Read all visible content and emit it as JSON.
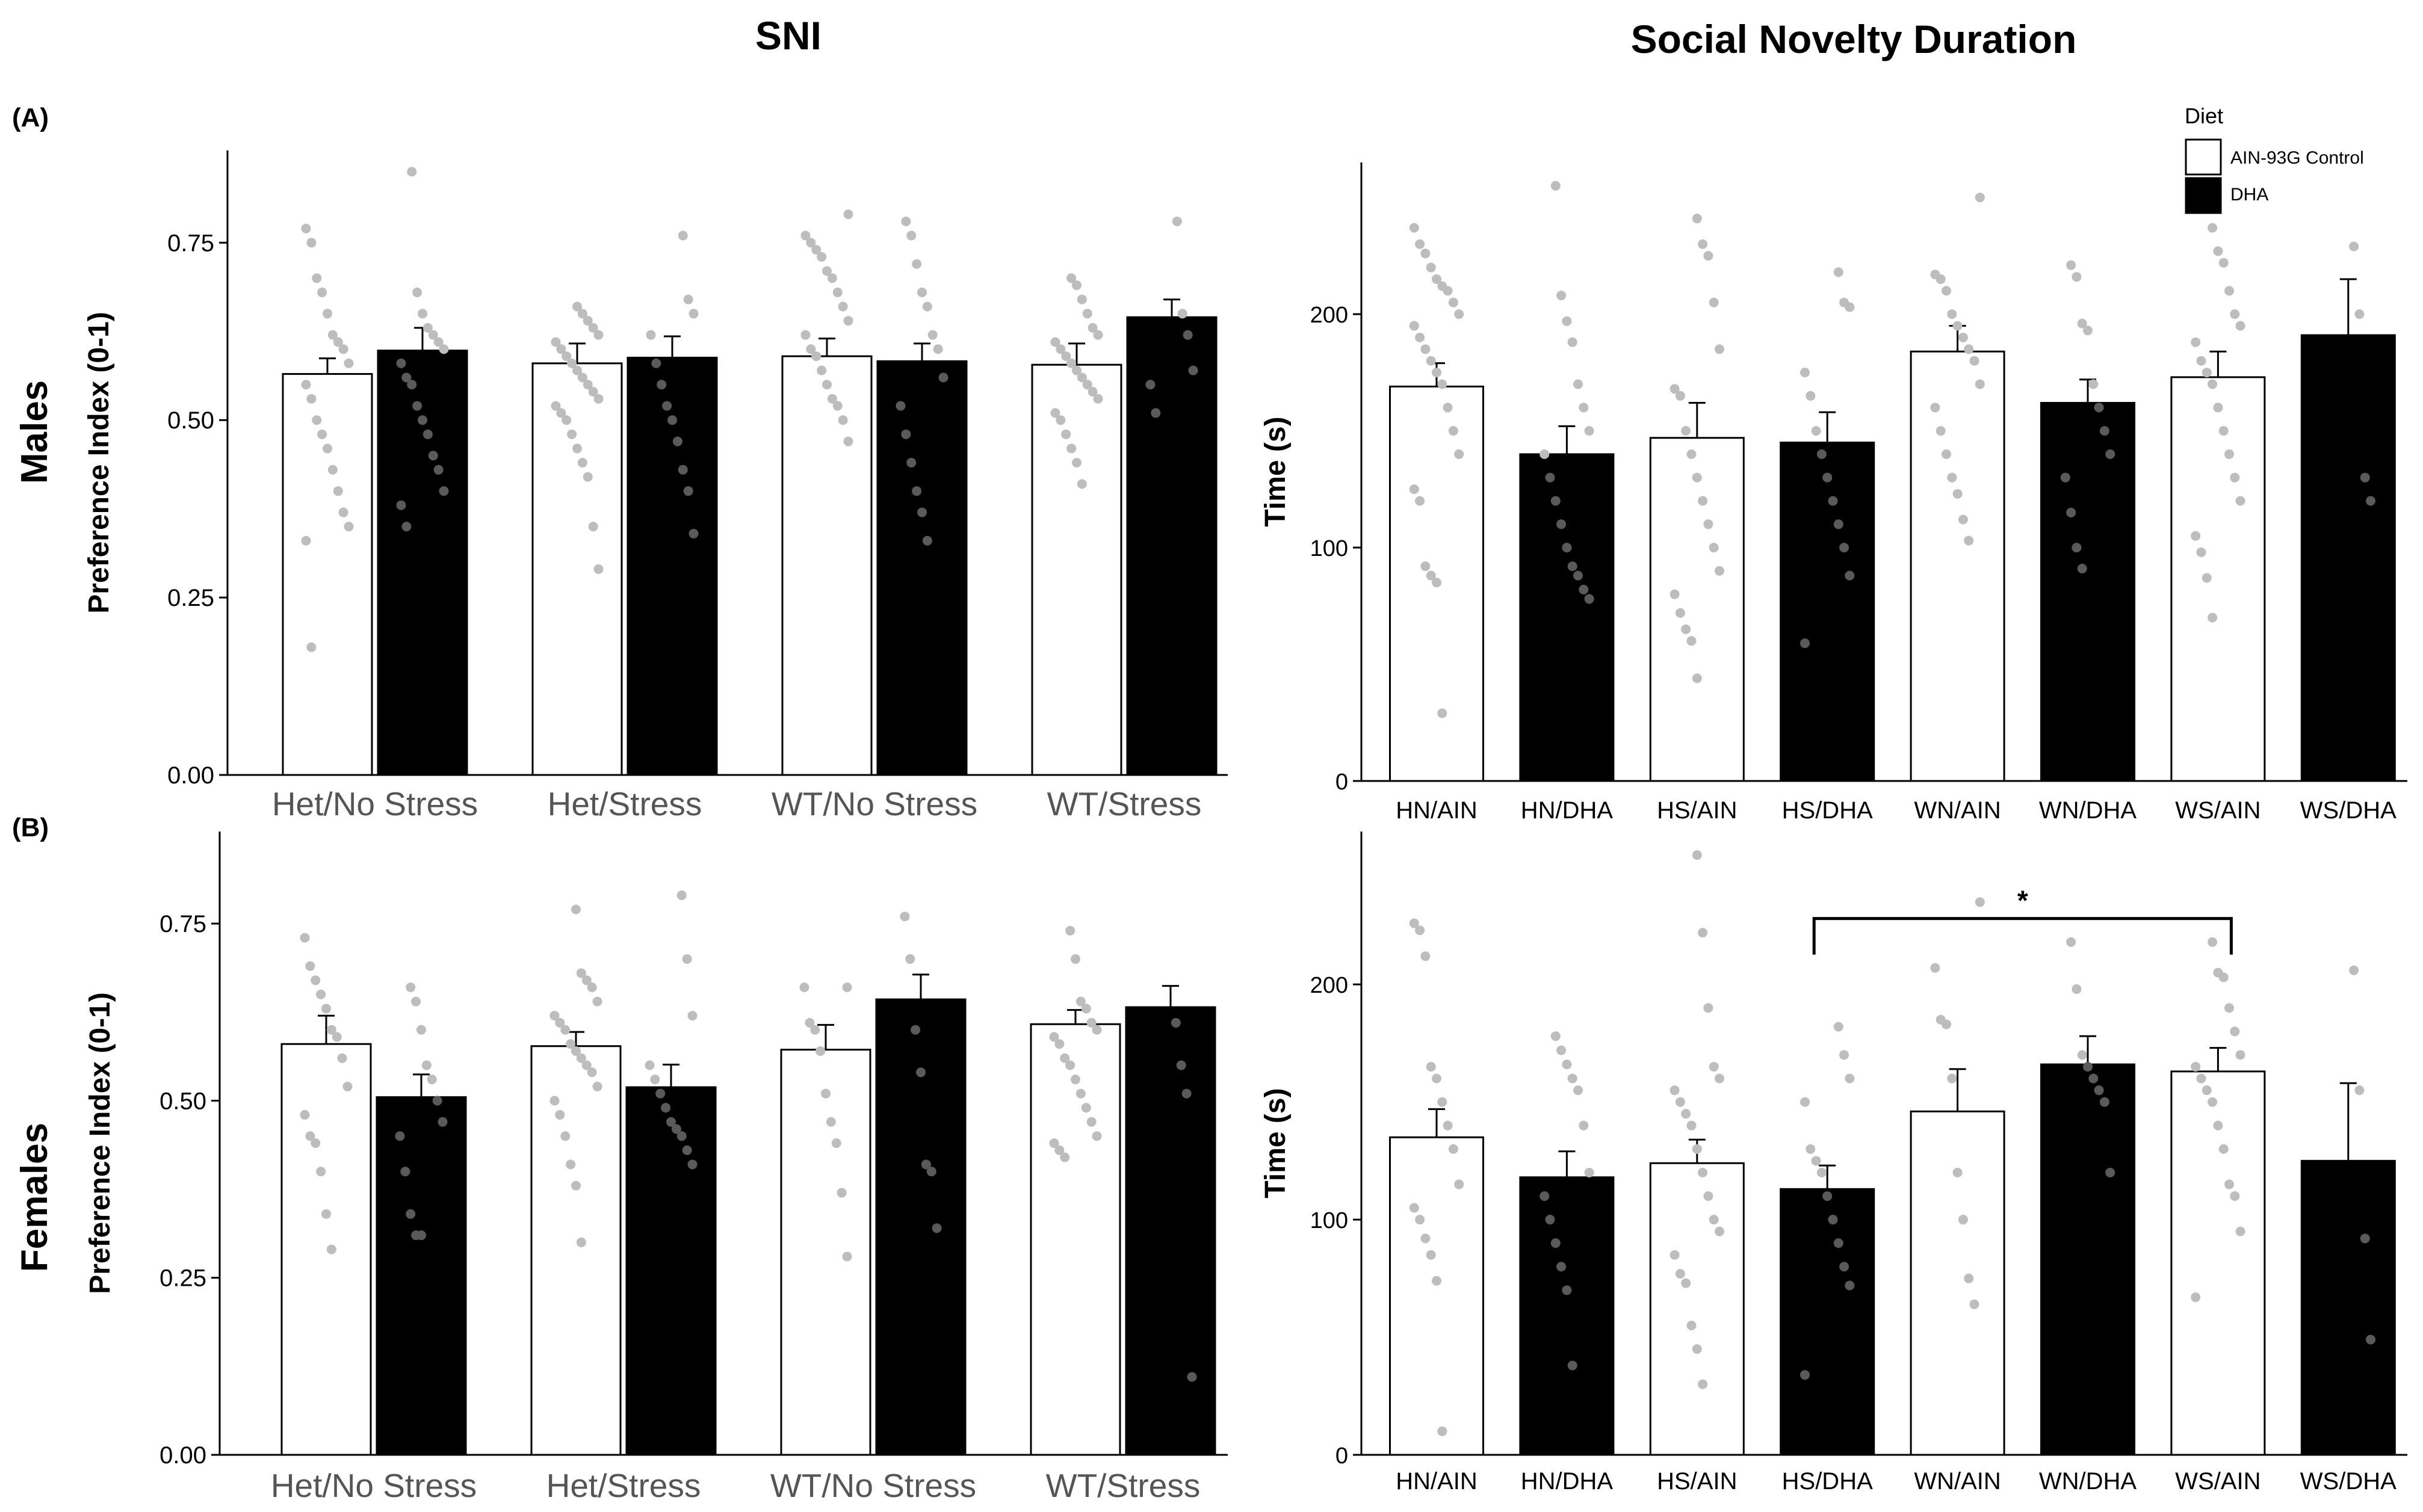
{
  "headers": {
    "left": "SNI",
    "right": "Social Novelty Duration",
    "row_a": "Males",
    "row_b": "Females",
    "panel_a": "(A)",
    "panel_b": "(B)"
  },
  "colors": {
    "ain": "#ffffff",
    "dha": "#000000",
    "dots": "#bdbdbd",
    "dots_on_black": "#5a5a5a",
    "axis": "#000000"
  },
  "legend": {
    "title": "Diet",
    "items": [
      {
        "label": "AIN-93G Control",
        "color": "#ffffff"
      },
      {
        "label": "DHA",
        "color": "#000000"
      }
    ]
  },
  "chart_data": [
    {
      "id": "males-sni",
      "type": "bar",
      "title": "SNI",
      "xlabel": "",
      "ylabel": "Preference Index (0-1)",
      "ylim": [
        0,
        0.88
      ],
      "yticks": [
        0,
        0.25,
        0.5,
        0.75
      ],
      "ytick_labels": [
        "0.00",
        "0.25",
        "0.50",
        "0.75"
      ],
      "categories": [
        "Het/No Stress",
        "Het/Stress",
        "WT/No Stress",
        "WT/Stress"
      ],
      "series": [
        {
          "name": "AIN-93G Control",
          "values": [
            0.565,
            0.58,
            0.59,
            0.578
          ],
          "errors": [
            0.022,
            0.028,
            0.025,
            0.03
          ]
        },
        {
          "name": "DHA",
          "values": [
            0.598,
            0.588,
            0.583,
            0.645
          ],
          "errors": [
            0.032,
            0.03,
            0.025,
            0.025
          ]
        }
      ],
      "points": [
        [
          [
            0.77,
            0.75,
            0.7,
            0.68,
            0.65,
            0.62,
            0.61,
            0.6,
            0.58,
            0.55,
            0.53,
            0.5,
            0.48,
            0.46,
            0.43,
            0.4,
            0.37,
            0.35,
            0.33,
            0.18
          ],
          [
            0.85,
            0.68,
            0.65,
            0.63,
            0.62,
            0.61,
            0.6,
            0.58,
            0.56,
            0.55,
            0.52,
            0.5,
            0.48,
            0.45,
            0.43,
            0.4,
            0.38,
            0.35
          ]
        ],
        [
          [
            0.66,
            0.65,
            0.64,
            0.63,
            0.62,
            0.61,
            0.6,
            0.59,
            0.58,
            0.57,
            0.56,
            0.55,
            0.54,
            0.53,
            0.52,
            0.51,
            0.5,
            0.48,
            0.46,
            0.44,
            0.42,
            0.35,
            0.29
          ],
          [
            0.76,
            0.67,
            0.65,
            0.62,
            0.58,
            0.55,
            0.52,
            0.5,
            0.47,
            0.43,
            0.4,
            0.34
          ]
        ],
        [
          [
            0.79,
            0.76,
            0.75,
            0.74,
            0.73,
            0.71,
            0.7,
            0.68,
            0.66,
            0.64,
            0.62,
            0.6,
            0.59,
            0.57,
            0.55,
            0.53,
            0.52,
            0.5,
            0.47
          ],
          [
            0.78,
            0.76,
            0.72,
            0.68,
            0.66,
            0.62,
            0.6,
            0.56,
            0.52,
            0.48,
            0.44,
            0.4,
            0.37,
            0.33
          ]
        ],
        [
          [
            0.7,
            0.69,
            0.67,
            0.65,
            0.63,
            0.62,
            0.61,
            0.6,
            0.59,
            0.58,
            0.57,
            0.56,
            0.55,
            0.54,
            0.53,
            0.51,
            0.5,
            0.48,
            0.46,
            0.44,
            0.41
          ],
          [
            0.78,
            0.65,
            0.62,
            0.57,
            0.55,
            0.51
          ]
        ]
      ]
    },
    {
      "id": "males-duration",
      "type": "bar",
      "title": "Social Novelty Duration",
      "xlabel": "",
      "ylabel": "Time (s)",
      "ylim": [
        0,
        265
      ],
      "yticks": [
        0,
        100,
        200
      ],
      "ytick_labels": [
        "0",
        "100",
        "200"
      ],
      "categories": [
        "HN/AIN",
        "HN/DHA",
        "HS/AIN",
        "HS/DHA",
        "WN/AIN",
        "WN/DHA",
        "WS/AIN",
        "WS/DHA"
      ],
      "values": [
        169,
        140,
        147,
        145,
        184,
        162,
        173,
        191
      ],
      "errors": [
        10,
        12,
        15,
        13,
        11,
        10,
        11,
        24
      ],
      "bar_colors": [
        "#ffffff",
        "#000000",
        "#ffffff",
        "#000000",
        "#ffffff",
        "#000000",
        "#ffffff",
        "#000000"
      ],
      "points": [
        [
          237,
          230,
          226,
          220,
          215,
          212,
          210,
          205,
          200,
          195,
          190,
          185,
          180,
          175,
          170,
          160,
          150,
          140,
          125,
          120,
          92,
          88,
          85,
          29
        ],
        [
          255,
          208,
          197,
          188,
          170,
          160,
          150,
          140,
          130,
          120,
          110,
          100,
          92,
          88,
          82,
          78
        ],
        [
          241,
          230,
          225,
          205,
          185,
          168,
          165,
          150,
          140,
          130,
          120,
          110,
          100,
          90,
          80,
          72,
          65,
          60,
          44
        ],
        [
          218,
          205,
          203,
          175,
          165,
          150,
          140,
          130,
          120,
          110,
          100,
          88,
          59
        ],
        [
          250,
          217,
          215,
          210,
          200,
          195,
          190,
          185,
          180,
          170,
          160,
          150,
          140,
          130,
          123,
          112,
          103
        ],
        [
          221,
          216,
          196,
          193,
          170,
          160,
          150,
          140,
          130,
          115,
          100,
          91
        ],
        [
          237,
          227,
          222,
          210,
          200,
          195,
          188,
          180,
          175,
          170,
          160,
          150,
          140,
          130,
          120,
          105,
          98,
          87,
          70
        ],
        [
          229,
          200,
          130,
          120
        ]
      ]
    },
    {
      "id": "females-sni",
      "type": "bar",
      "title": "SNI",
      "xlabel": "",
      "ylabel": "Preference Index (0-1)",
      "ylim": [
        0,
        0.88
      ],
      "yticks": [
        0,
        0.25,
        0.5,
        0.75
      ],
      "ytick_labels": [
        "0.00",
        "0.25",
        "0.50",
        "0.75"
      ],
      "categories": [
        "Het/No Stress",
        "Het/Stress",
        "WT/No Stress",
        "WT/Stress"
      ],
      "series": [
        {
          "name": "AIN-93G Control",
          "values": [
            0.58,
            0.577,
            0.572,
            0.608
          ],
          "errors": [
            0.04,
            0.02,
            0.035,
            0.02
          ]
        },
        {
          "name": "DHA",
          "values": [
            0.505,
            0.519,
            0.643,
            0.632
          ],
          "errors": [
            0.032,
            0.032,
            0.035,
            0.03
          ]
        }
      ],
      "points": [
        [
          [
            0.73,
            0.69,
            0.67,
            0.65,
            0.63,
            0.6,
            0.59,
            0.56,
            0.52,
            0.48,
            0.45,
            0.44,
            0.4,
            0.34,
            0.29
          ],
          [
            0.66,
            0.64,
            0.6,
            0.55,
            0.53,
            0.5,
            0.47,
            0.45,
            0.4,
            0.34,
            0.31,
            0.31
          ]
        ],
        [
          [
            0.77,
            0.68,
            0.67,
            0.66,
            0.64,
            0.62,
            0.61,
            0.6,
            0.58,
            0.57,
            0.56,
            0.55,
            0.54,
            0.52,
            0.5,
            0.48,
            0.45,
            0.41,
            0.38,
            0.3
          ],
          [
            0.79,
            0.7,
            0.62,
            0.55,
            0.53,
            0.51,
            0.49,
            0.47,
            0.46,
            0.45,
            0.43,
            0.41
          ]
        ],
        [
          [
            0.66,
            0.66,
            0.61,
            0.6,
            0.57,
            0.51,
            0.47,
            0.44,
            0.37,
            0.28
          ],
          [
            0.76,
            0.7,
            0.6,
            0.54,
            0.41,
            0.4,
            0.32
          ]
        ],
        [
          [
            0.74,
            0.7,
            0.64,
            0.63,
            0.61,
            0.6,
            0.59,
            0.58,
            0.56,
            0.55,
            0.53,
            0.51,
            0.49,
            0.47,
            0.45,
            0.44,
            0.43,
            0.42
          ],
          [
            0.61,
            0.55,
            0.51,
            0.11
          ]
        ]
      ]
    },
    {
      "id": "females-duration",
      "type": "bar",
      "title": "Social Novelty Duration",
      "xlabel": "",
      "ylabel": "Time (s)",
      "ylim": [
        0,
        265
      ],
      "yticks": [
        0,
        100,
        200
      ],
      "ytick_labels": [
        "0",
        "100",
        "200"
      ],
      "categories": [
        "HN/AIN",
        "HN/DHA",
        "HS/AIN",
        "HS/DHA",
        "WN/AIN",
        "WN/DHA",
        "WS/AIN",
        "WS/DHA"
      ],
      "values": [
        135,
        118,
        124,
        113,
        146,
        166,
        163,
        125
      ],
      "errors": [
        12,
        11,
        10,
        10,
        18,
        12,
        10,
        33
      ],
      "bar_colors": [
        "#ffffff",
        "#000000",
        "#ffffff",
        "#000000",
        "#ffffff",
        "#000000",
        "#ffffff",
        "#000000"
      ],
      "points": [
        [
          226,
          223,
          212,
          165,
          160,
          150,
          140,
          130,
          115,
          105,
          100,
          92,
          85,
          74,
          10
        ],
        [
          178,
          172,
          166,
          160,
          155,
          140,
          120,
          110,
          100,
          90,
          80,
          70,
          38
        ],
        [
          255,
          222,
          190,
          165,
          160,
          155,
          150,
          145,
          140,
          130,
          120,
          110,
          100,
          95,
          85,
          77,
          73,
          55,
          45,
          30
        ],
        [
          182,
          170,
          160,
          150,
          130,
          125,
          120,
          110,
          100,
          90,
          80,
          72,
          34
        ],
        [
          235,
          207,
          185,
          183,
          160,
          120,
          100,
          75,
          64
        ],
        [
          218,
          198,
          170,
          165,
          160,
          155,
          150,
          120
        ],
        [
          218,
          205,
          203,
          190,
          180,
          170,
          165,
          160,
          155,
          150,
          140,
          130,
          115,
          110,
          95,
          67
        ],
        [
          206,
          155,
          92,
          49
        ]
      ],
      "annotation": {
        "text": "*",
        "from": "HS/DHA",
        "to": "WS/AIN",
        "y": 228
      }
    }
  ]
}
